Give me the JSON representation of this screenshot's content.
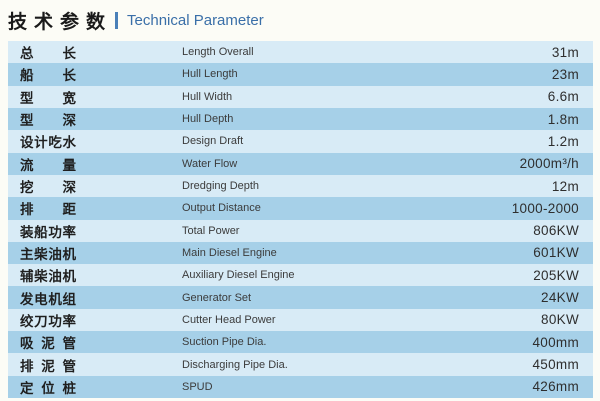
{
  "header": {
    "title_zh": "技术参数",
    "separator": "|",
    "title_en": "Technical Parameter"
  },
  "colors": {
    "accent_blue": "#3a6fa8",
    "row_light": "#d8ebf6",
    "row_dark": "#a6d0e8"
  },
  "table": {
    "rows": [
      {
        "zh": "总长",
        "en": "Length Overall",
        "value": "31m"
      },
      {
        "zh": "船长",
        "en": "Hull Length",
        "value": "23m"
      },
      {
        "zh": "型宽",
        "en": "Hull Width",
        "value": "6.6m"
      },
      {
        "zh": "型深",
        "en": "Hull Depth",
        "value": "1.8m"
      },
      {
        "zh": "设计吃水",
        "en": "Design Draft",
        "value": "1.2m"
      },
      {
        "zh": "流量",
        "en": "Water Flow",
        "value": "2000m³/h"
      },
      {
        "zh": "挖深",
        "en": "Dredging Depth",
        "value": "12m"
      },
      {
        "zh": "排距",
        "en": "Output Distance",
        "value": "1000-2000"
      },
      {
        "zh": "装船功率",
        "en": "Total Power",
        "value": "806KW"
      },
      {
        "zh": "主柴油机",
        "en": "Main Diesel Engine",
        "value": "601KW"
      },
      {
        "zh": "辅柴油机",
        "en": "Auxiliary Diesel Engine",
        "value": "205KW"
      },
      {
        "zh": "发电机组",
        "en": "Generator Set",
        "value": "24KW"
      },
      {
        "zh": "绞刀功率",
        "en": "Cutter Head Power",
        "value": "80KW"
      },
      {
        "zh": "吸泥管",
        "en": "Suction Pipe Dia.",
        "value": "400mm"
      },
      {
        "zh": "排泥管",
        "en": "Discharging Pipe Dia.",
        "value": "450mm"
      },
      {
        "zh": "定位桩",
        "en": "SPUD",
        "value": "426mm"
      }
    ]
  }
}
